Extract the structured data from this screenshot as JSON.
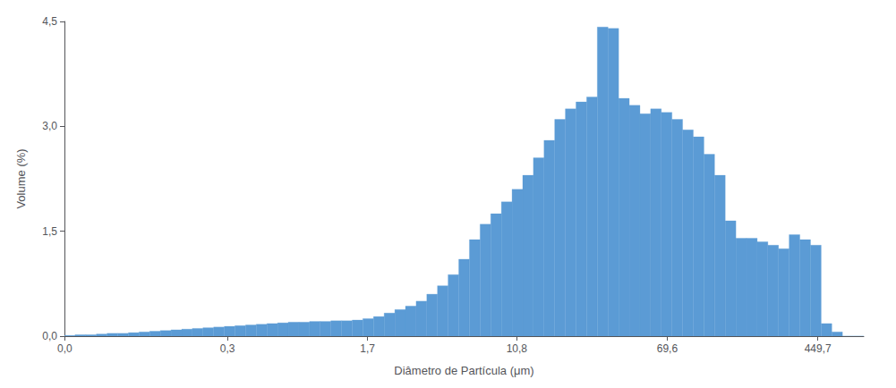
{
  "chart_data": {
    "type": "histogram",
    "xlabel": "Diâmetro de Partícula (μm)",
    "ylabel": "Volume (%)",
    "log": "x",
    "grid": false,
    "color": "#5b9bd5",
    "xlim": [
      0.039811,
      794.33
    ],
    "xticks": [
      {
        "value": 0.04,
        "label": "0,0"
      },
      {
        "value": 0.3,
        "label": "0,3"
      },
      {
        "value": 1.7,
        "label": "1,7"
      },
      {
        "value": 10.8,
        "label": "10,8"
      },
      {
        "value": 69.6,
        "label": "69,6"
      },
      {
        "value": 449.7,
        "label": "449,7"
      }
    ],
    "ylim": [
      0,
      4.5
    ],
    "yticks": [
      {
        "value": 0.0,
        "label": "0,0"
      },
      {
        "value": 1.5,
        "label": "1,5"
      },
      {
        "value": 3.0,
        "label": "3,0"
      },
      {
        "value": 4.5,
        "label": "4,5"
      }
    ],
    "bins": [
      0.039811,
      0.045429,
      0.05184,
      0.059156,
      0.067505,
      0.077031,
      0.087902,
      0.10031,
      0.11446,
      0.13062,
      0.14905,
      0.17009,
      0.19409,
      0.22148,
      0.25274,
      0.2884,
      0.3291,
      0.37555,
      0.42855,
      0.48903,
      0.55804,
      0.6368,
      0.72667,
      0.82922,
      0.94624,
      1.0798,
      1.2322,
      1.406,
      1.6045,
      1.8309,
      2.0893,
      2.3841,
      2.7206,
      3.1046,
      3.5427,
      4.0427,
      4.6132,
      5.2642,
      6.0071,
      6.8549,
      7.8223,
      8.9262,
      10.186,
      11.623,
      13.264,
      15.136,
      17.272,
      19.709,
      22.491,
      25.665,
      29.286,
      33.42,
      38.136,
      43.518,
      49.659,
      56.667,
      64.665,
      73.79,
      84.204,
      96.088,
      109.65,
      125.12,
      142.78,
      162.93,
      185.92,
      212.16,
      242.1,
      276.27,
      315.26,
      359.75,
      410.52,
      468.45,
      534.56,
      610.01,
      696.09,
      794.33
    ],
    "values": [
      0.01,
      0.02,
      0.02,
      0.03,
      0.04,
      0.04,
      0.05,
      0.06,
      0.07,
      0.08,
      0.09,
      0.1,
      0.11,
      0.12,
      0.13,
      0.14,
      0.15,
      0.16,
      0.17,
      0.18,
      0.19,
      0.2,
      0.2,
      0.21,
      0.21,
      0.22,
      0.22,
      0.23,
      0.25,
      0.28,
      0.33,
      0.38,
      0.43,
      0.5,
      0.6,
      0.72,
      0.88,
      1.1,
      1.38,
      1.6,
      1.75,
      1.92,
      2.1,
      2.3,
      2.55,
      2.8,
      3.1,
      3.25,
      3.35,
      3.42,
      4.42,
      4.4,
      3.4,
      3.3,
      3.18,
      3.25,
      3.2,
      3.1,
      2.95,
      2.85,
      2.6,
      2.3,
      1.65,
      1.4,
      1.4,
      1.35,
      1.3,
      1.25,
      1.45,
      1.38,
      1.3,
      0.18,
      0.06,
      0.0,
      0.0
    ]
  }
}
